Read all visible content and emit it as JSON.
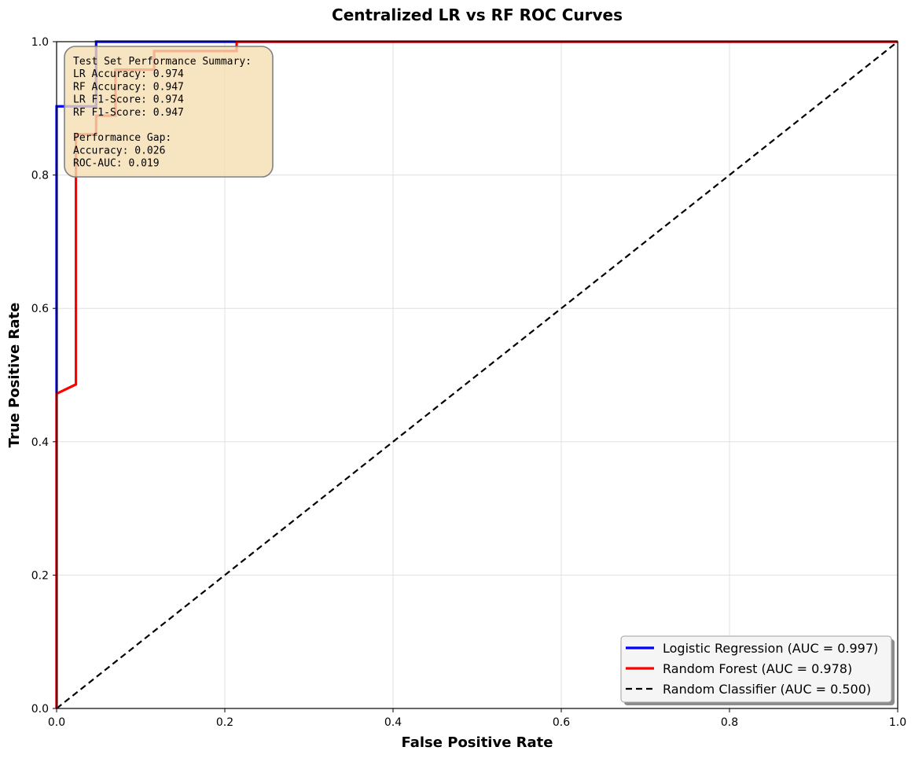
{
  "chart_data": {
    "type": "line",
    "title": "Centralized LR vs RF ROC Curves",
    "xlabel": "False Positive Rate",
    "ylabel": "True Positive Rate",
    "xlim": [
      0,
      1
    ],
    "ylim": [
      0,
      1
    ],
    "xticks": [
      "0.0",
      "0.2",
      "0.4",
      "0.6",
      "0.8",
      "1.0"
    ],
    "yticks": [
      "0.0",
      "0.2",
      "0.4",
      "0.6",
      "0.8",
      "1.0"
    ],
    "grid": true,
    "legend_position": "lower-right",
    "series": [
      {
        "name": "Logistic Regression (AUC = 0.997)",
        "color": "#0000ff",
        "style": "solid",
        "x": [
          0,
          0,
          0.047,
          0.047,
          1
        ],
        "y": [
          0,
          0.903,
          0.903,
          1,
          1
        ]
      },
      {
        "name": "Random Forest (AUC = 0.978)",
        "color": "#ff0000",
        "style": "solid",
        "x": [
          0,
          0,
          0.023,
          0.023,
          0.047,
          0.047,
          0.07,
          0.07,
          0.116,
          0.116,
          0.214,
          0.214,
          1
        ],
        "y": [
          0,
          0.472,
          0.486,
          0.861,
          0.861,
          0.889,
          0.889,
          0.958,
          0.958,
          0.986,
          0.986,
          1,
          1
        ]
      },
      {
        "name": "Random Classifier (AUC = 0.500)",
        "color": "#000000",
        "style": "dashed",
        "x": [
          0,
          1
        ],
        "y": [
          0,
          1
        ]
      }
    ],
    "annotation": {
      "lines": [
        "Test Set Performance Summary:",
        "LR Accuracy: 0.974",
        "RF Accuracy: 0.947",
        "LR F1-Score: 0.974",
        "RF F1-Score: 0.947",
        "",
        "Performance Gap:",
        "Accuracy: 0.026",
        "ROC-AUC: 0.019"
      ],
      "background": "#f5deb3"
    }
  }
}
